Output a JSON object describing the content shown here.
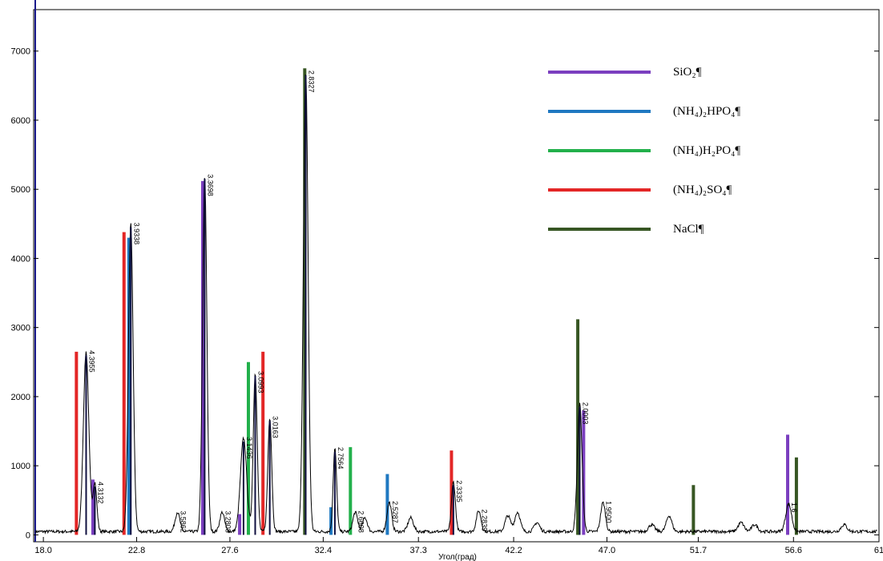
{
  "chart_data": {
    "type": "line",
    "title": "",
    "xlabel": "Угол(град)",
    "ylabel": "",
    "xlim": [
      17.5,
      61
    ],
    "ylim": [
      -100,
      7600
    ],
    "x_ticks": [
      18.0,
      22.8,
      27.6,
      32.4,
      37.3,
      42.2,
      47.0,
      51.7,
      56.6,
      61
    ],
    "x_tick_labels": [
      "18.0",
      "22.8",
      "27.6",
      "32.4",
      "37.3",
      "42.2",
      "47.0",
      "51.7",
      "56.6",
      "61"
    ],
    "y_ticks": [
      0,
      1000,
      2000,
      3000,
      4000,
      5000,
      6000,
      7000
    ],
    "y_tick_labels": [
      "0",
      "1000",
      "2000",
      "3000",
      "4000",
      "5000",
      "6000",
      "7000"
    ],
    "grid": false,
    "legend_position": "top-right",
    "pattern_line": {
      "name": "",
      "color": "#000000",
      "peaks": [
        {
          "x": 20.2,
          "h": 2600,
          "w": 0.14
        },
        {
          "x": 20.65,
          "h": 700,
          "w": 0.1
        },
        {
          "x": 22.5,
          "h": 4450,
          "w": 0.12
        },
        {
          "x": 24.9,
          "h": 280,
          "w": 0.12
        },
        {
          "x": 26.3,
          "h": 5150,
          "w": 0.11
        },
        {
          "x": 27.2,
          "h": 280,
          "w": 0.12
        },
        {
          "x": 28.3,
          "h": 1350,
          "w": 0.16
        },
        {
          "x": 28.9,
          "h": 2300,
          "w": 0.1
        },
        {
          "x": 29.65,
          "h": 1650,
          "w": 0.1
        },
        {
          "x": 31.5,
          "h": 6650,
          "w": 0.12
        },
        {
          "x": 33.0,
          "h": 1200,
          "w": 0.09
        },
        {
          "x": 34.05,
          "h": 280,
          "w": 0.12
        },
        {
          "x": 34.55,
          "h": 200,
          "w": 0.12
        },
        {
          "x": 35.8,
          "h": 420,
          "w": 0.12
        },
        {
          "x": 36.9,
          "h": 200,
          "w": 0.14
        },
        {
          "x": 39.1,
          "h": 720,
          "w": 0.1
        },
        {
          "x": 40.4,
          "h": 300,
          "w": 0.12
        },
        {
          "x": 41.9,
          "h": 230,
          "w": 0.14
        },
        {
          "x": 42.4,
          "h": 280,
          "w": 0.14
        },
        {
          "x": 43.4,
          "h": 130,
          "w": 0.14
        },
        {
          "x": 45.6,
          "h": 1850,
          "w": 0.12
        },
        {
          "x": 46.8,
          "h": 420,
          "w": 0.12
        },
        {
          "x": 49.3,
          "h": 100,
          "w": 0.15
        },
        {
          "x": 50.2,
          "h": 230,
          "w": 0.14
        },
        {
          "x": 53.9,
          "h": 130,
          "w": 0.15
        },
        {
          "x": 54.6,
          "h": 100,
          "w": 0.15
        },
        {
          "x": 56.35,
          "h": 400,
          "w": 0.15
        },
        {
          "x": 59.2,
          "h": 100,
          "w": 0.15
        }
      ]
    },
    "peak_labels": [
      {
        "x": 20.2,
        "y": 2600,
        "text": "4.3955"
      },
      {
        "x": 20.65,
        "y": 700,
        "text": "4.3132"
      },
      {
        "x": 22.5,
        "y": 4450,
        "text": "3.9338"
      },
      {
        "x": 24.9,
        "y": 280,
        "text": "3.5862"
      },
      {
        "x": 26.3,
        "y": 5150,
        "text": "3.3698"
      },
      {
        "x": 27.2,
        "y": 280,
        "text": "3.2808"
      },
      {
        "x": 28.3,
        "y": 1350,
        "text": "3.1436"
      },
      {
        "x": 28.9,
        "y": 2300,
        "text": "3.0993"
      },
      {
        "x": 29.65,
        "y": 1650,
        "text": "3.0163"
      },
      {
        "x": 31.5,
        "y": 6650,
        "text": "2.8327"
      },
      {
        "x": 33.0,
        "y": 1200,
        "text": "2.7564"
      },
      {
        "x": 34.05,
        "y": 280,
        "text": "2.6608"
      },
      {
        "x": 35.8,
        "y": 420,
        "text": "2.5287"
      },
      {
        "x": 39.1,
        "y": 720,
        "text": "2.3335"
      },
      {
        "x": 40.4,
        "y": 300,
        "text": "2.2839"
      },
      {
        "x": 45.6,
        "y": 1850,
        "text": "2.0003"
      },
      {
        "x": 46.8,
        "y": 420,
        "text": "1.9500"
      },
      {
        "x": 56.35,
        "y": 400,
        "text": "1.6"
      }
    ],
    "series": [
      {
        "name": "SiO₂¶",
        "color": "#7b3fbf",
        "sticks": [
          [
            20.55,
            800
          ],
          [
            26.2,
            5120
          ],
          [
            28.1,
            300
          ],
          [
            45.8,
            1800
          ],
          [
            56.3,
            1450
          ]
        ]
      },
      {
        "name": "(NH₄)₂HPO₄¶",
        "color": "#1f78c1",
        "sticks": [
          [
            22.4,
            4300
          ],
          [
            32.8,
            400
          ],
          [
            35.7,
            880
          ]
        ]
      },
      {
        "name": "(NH₄)H₂PO₄¶",
        "color": "#22b04b",
        "sticks": [
          [
            28.55,
            2500
          ],
          [
            33.8,
            1270
          ],
          [
            45.55,
            1300
          ]
        ]
      },
      {
        "name": "(NH₄)₂SO₄¶",
        "color": "#e32626",
        "sticks": [
          [
            19.7,
            2650
          ],
          [
            22.15,
            4380
          ],
          [
            29.3,
            2650
          ],
          [
            39.0,
            1220
          ]
        ]
      },
      {
        "name": "NaCl¶",
        "color": "#375623",
        "sticks": [
          [
            31.45,
            6750
          ],
          [
            45.5,
            3120
          ],
          [
            51.45,
            720
          ],
          [
            56.75,
            1120
          ]
        ]
      }
    ]
  }
}
